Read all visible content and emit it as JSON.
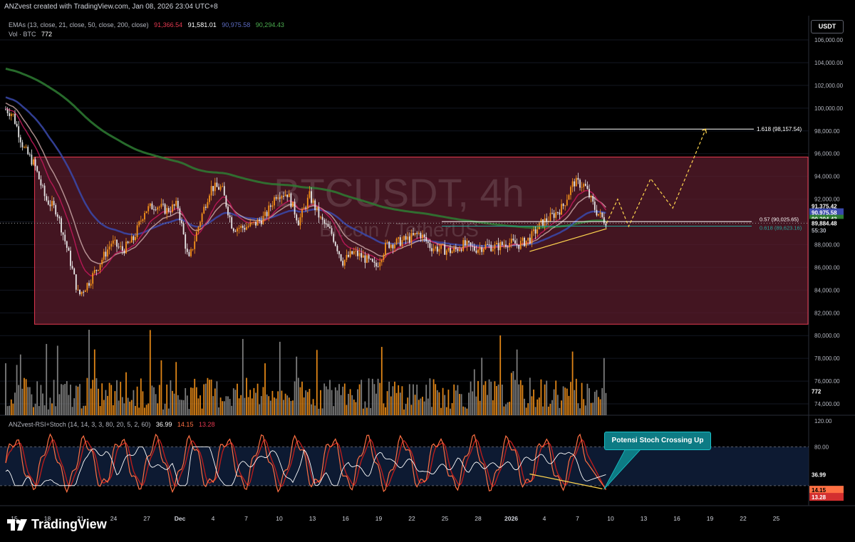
{
  "header": {
    "credit": "ANZvest created with TradingView.com, Jan 08, 2026 23:04 UTC+8"
  },
  "watermark": {
    "symbol": "BTCUSDT, 4h",
    "subtitle": "Bitcoin / TetherUS"
  },
  "currency_button": "USDT",
  "legend": {
    "emas": {
      "label": "EMAs (13, close, 21, close, 50, close, 200, close)",
      "v13": "91,366.54",
      "v21": "91,581.01",
      "v50": "90,975.58",
      "v200": "90,294.43"
    },
    "volume": {
      "label": "Vol · BTC",
      "value": "772"
    }
  },
  "indicator_legend": {
    "label": "ANZvest-RSI+Stoch (14, 14, 3, 3, 80, 20, 5, 2, 60)",
    "v1": "36.99",
    "v2": "14.15",
    "v3": "13.28"
  },
  "callout": "Potensi Stoch Crossing Up",
  "logo": "TradingView",
  "price_axis": [
    "106,000.00",
    "104,000.00",
    "102,000.00",
    "100,000.00",
    "98,000.00",
    "96,000.00",
    "94,000.00",
    "92,000.00",
    "90,000.00",
    "88,000.00",
    "86,000.00",
    "84,000.00",
    "82,000.00",
    "80,000.00",
    "78,000.00",
    "76,000.00",
    "74,000.00"
  ],
  "price_labels": {
    "last": "91,375.42",
    "ema_a": "90,975.58",
    "ema_b": "90,294.43",
    "current": "89,884.48",
    "countdown": "55:30",
    "vol": "772"
  },
  "fib_labels": {
    "ext": "1.618 (98,157.54)",
    "f57": "0.57 (90,025.65)",
    "f618": "0.618 (89,623.16)"
  },
  "osc_axis": [
    "120.00",
    "80.00",
    "40.00"
  ],
  "osc_labels": {
    "rsi": "36.99",
    "k": "14.15",
    "d": "13.28"
  },
  "time_axis": [
    "15",
    "18",
    "21",
    "24",
    "27",
    "Dec",
    "4",
    "7",
    "10",
    "13",
    "16",
    "19",
    "22",
    "25",
    "28",
    "2026",
    "4",
    "7",
    "10",
    "13",
    "16",
    "19",
    "22",
    "25"
  ],
  "colors": {
    "bull": "#f7931a",
    "bear": "#e8e8e8",
    "ema13": "#c2185b",
    "ema21": "#c8a4a4",
    "ema50": "#3949ab",
    "ema200": "#2e7d32",
    "range_zone": "#5a1c2c",
    "range_border": "#e53950",
    "fib_line": "#ffffff",
    "support_trend": "#ffd54f",
    "projection": "#ffd54f",
    "stoch_k": "#ff7043",
    "stoch_d": "#b71c1c",
    "rsi": "#ffffff",
    "osc_band": "#10213e"
  },
  "chart_data": [
    {
      "type": "candlestick",
      "title": "BTCUSDT, 4h",
      "x": [
        "15",
        "18",
        "21",
        "24",
        "27",
        "Dec",
        "4",
        "7",
        "10",
        "13",
        "16",
        "19",
        "22",
        "25",
        "28",
        "2026",
        "4",
        "7",
        "10",
        "13",
        "16",
        "19",
        "22",
        "25"
      ],
      "ylim": [
        74000,
        107000
      ],
      "close_path": [
        [
          "Nov 15",
          99500
        ],
        [
          "Nov 16",
          96500
        ],
        [
          "Nov 17",
          95000
        ],
        [
          "Nov 18",
          92000
        ],
        [
          "Nov 19",
          91000
        ],
        [
          "Nov 20",
          87500
        ],
        [
          "Nov 21",
          83500
        ],
        [
          "Nov 22",
          84800
        ],
        [
          "Nov 23",
          86500
        ],
        [
          "Nov 24",
          88200
        ],
        [
          "Nov 25",
          87500
        ],
        [
          "Nov 26",
          88500
        ],
        [
          "Nov 27",
          91000
        ],
        [
          "Nov 28",
          91500
        ],
        [
          "Nov 29",
          91000
        ],
        [
          "Nov 30",
          91500
        ],
        [
          "Dec 1",
          86500
        ],
        [
          "Dec 2",
          90000
        ],
        [
          "Dec 3",
          93000
        ],
        [
          "Dec 4",
          93000
        ],
        [
          "Dec 5",
          89500
        ],
        [
          "Dec 6",
          89500
        ],
        [
          "Dec 7",
          89800
        ],
        [
          "Dec 8",
          90500
        ],
        [
          "Dec 9",
          92500
        ],
        [
          "Dec 10",
          92500
        ],
        [
          "Dec 11",
          90000
        ],
        [
          "Dec 12",
          92300
        ],
        [
          "Dec 13",
          90200
        ],
        [
          "Dec 14",
          89000
        ],
        [
          "Dec 15",
          86500
        ],
        [
          "Dec 16",
          87300
        ],
        [
          "Dec 17",
          86800
        ],
        [
          "Dec 18",
          86000
        ],
        [
          "Dec 19",
          88000
        ],
        [
          "Dec 20",
          88200
        ],
        [
          "Dec 21",
          88500
        ],
        [
          "Dec 22",
          89000
        ],
        [
          "Dec 23",
          87800
        ],
        [
          "Dec 24",
          87600
        ],
        [
          "Dec 25",
          87400
        ],
        [
          "Dec 26",
          88000
        ],
        [
          "Dec 27",
          87600
        ],
        [
          "Dec 28",
          87900
        ],
        [
          "Dec 29",
          87800
        ],
        [
          "Dec 30",
          88200
        ],
        [
          "Dec 31",
          88000
        ],
        [
          "Jan 1",
          88500
        ],
        [
          "Jan 2",
          89800
        ],
        [
          "Jan 3",
          90500
        ],
        [
          "Jan 4",
          91300
        ],
        [
          "Jan 5",
          93500
        ],
        [
          "Jan 6",
          93200
        ],
        [
          "Jan 7",
          91000
        ],
        [
          "Jan 8",
          89884
        ]
      ],
      "series": [
        {
          "name": "EMA 13",
          "last": 91366.54
        },
        {
          "name": "EMA 21",
          "last": 91581.01
        },
        {
          "name": "EMA 50",
          "last": 90975.58
        },
        {
          "name": "EMA 200",
          "last": 90294.43
        }
      ],
      "range_zone": {
        "from": 81000,
        "to": 95700,
        "start": "Nov 17",
        "end": "Jan 26"
      },
      "fib_levels": [
        {
          "label": "1.618",
          "value": 98157.54
        },
        {
          "label": "0.57",
          "value": 90025.65
        },
        {
          "label": "0.618",
          "value": 89623.16
        }
      ],
      "projection": [
        [
          "Jan 8",
          89884
        ],
        [
          "Jan 9",
          92000
        ],
        [
          "Jan 10",
          89600
        ],
        [
          "Jan 12",
          93800
        ],
        [
          "Jan 14",
          91200
        ],
        [
          "Jan 16",
          95800
        ],
        [
          "Jan 17",
          98157
        ]
      ],
      "support_trendline": [
        [
          "Jan 1",
          87400
        ],
        [
          "Jan 8",
          89400
        ]
      ],
      "volume_last": 772
    },
    {
      "type": "line",
      "title": "ANZvest-RSI+Stoch",
      "ylim": [
        0,
        120
      ],
      "series": [
        {
          "name": "RSI",
          "last": 36.99
        },
        {
          "name": "Stoch %K",
          "last": 14.15
        },
        {
          "name": "Stoch %D",
          "last": 13.28
        }
      ],
      "bands": [
        80,
        20
      ]
    }
  ]
}
